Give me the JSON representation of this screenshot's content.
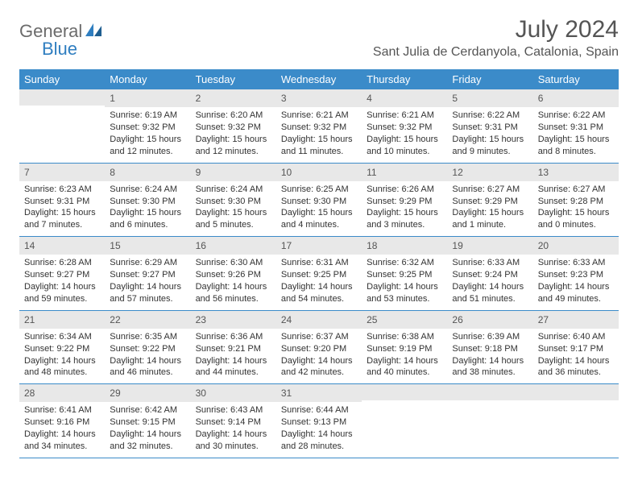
{
  "logo": {
    "part1": "General",
    "part2": "Blue"
  },
  "title": "July 2024",
  "location": "Sant Julia de Cerdanyola, Catalonia, Spain",
  "weekdays": [
    "Sunday",
    "Monday",
    "Tuesday",
    "Wednesday",
    "Thursday",
    "Friday",
    "Saturday"
  ],
  "colors": {
    "header_bg": "#3b8bc9",
    "header_text": "#ffffff",
    "daynum_bg": "#e8e8e8",
    "rule": "#3b8bc9",
    "logo_gray": "#6b6b6b",
    "logo_blue": "#2f7ec0"
  },
  "weeks": [
    [
      {
        "n": "",
        "sunrise": "",
        "sunset": "",
        "daylight": ""
      },
      {
        "n": "1",
        "sunrise": "Sunrise: 6:19 AM",
        "sunset": "Sunset: 9:32 PM",
        "daylight": "Daylight: 15 hours and 12 minutes."
      },
      {
        "n": "2",
        "sunrise": "Sunrise: 6:20 AM",
        "sunset": "Sunset: 9:32 PM",
        "daylight": "Daylight: 15 hours and 12 minutes."
      },
      {
        "n": "3",
        "sunrise": "Sunrise: 6:21 AM",
        "sunset": "Sunset: 9:32 PM",
        "daylight": "Daylight: 15 hours and 11 minutes."
      },
      {
        "n": "4",
        "sunrise": "Sunrise: 6:21 AM",
        "sunset": "Sunset: 9:32 PM",
        "daylight": "Daylight: 15 hours and 10 minutes."
      },
      {
        "n": "5",
        "sunrise": "Sunrise: 6:22 AM",
        "sunset": "Sunset: 9:31 PM",
        "daylight": "Daylight: 15 hours and 9 minutes."
      },
      {
        "n": "6",
        "sunrise": "Sunrise: 6:22 AM",
        "sunset": "Sunset: 9:31 PM",
        "daylight": "Daylight: 15 hours and 8 minutes."
      }
    ],
    [
      {
        "n": "7",
        "sunrise": "Sunrise: 6:23 AM",
        "sunset": "Sunset: 9:31 PM",
        "daylight": "Daylight: 15 hours and 7 minutes."
      },
      {
        "n": "8",
        "sunrise": "Sunrise: 6:24 AM",
        "sunset": "Sunset: 9:30 PM",
        "daylight": "Daylight: 15 hours and 6 minutes."
      },
      {
        "n": "9",
        "sunrise": "Sunrise: 6:24 AM",
        "sunset": "Sunset: 9:30 PM",
        "daylight": "Daylight: 15 hours and 5 minutes."
      },
      {
        "n": "10",
        "sunrise": "Sunrise: 6:25 AM",
        "sunset": "Sunset: 9:30 PM",
        "daylight": "Daylight: 15 hours and 4 minutes."
      },
      {
        "n": "11",
        "sunrise": "Sunrise: 6:26 AM",
        "sunset": "Sunset: 9:29 PM",
        "daylight": "Daylight: 15 hours and 3 minutes."
      },
      {
        "n": "12",
        "sunrise": "Sunrise: 6:27 AM",
        "sunset": "Sunset: 9:29 PM",
        "daylight": "Daylight: 15 hours and 1 minute."
      },
      {
        "n": "13",
        "sunrise": "Sunrise: 6:27 AM",
        "sunset": "Sunset: 9:28 PM",
        "daylight": "Daylight: 15 hours and 0 minutes."
      }
    ],
    [
      {
        "n": "14",
        "sunrise": "Sunrise: 6:28 AM",
        "sunset": "Sunset: 9:27 PM",
        "daylight": "Daylight: 14 hours and 59 minutes."
      },
      {
        "n": "15",
        "sunrise": "Sunrise: 6:29 AM",
        "sunset": "Sunset: 9:27 PM",
        "daylight": "Daylight: 14 hours and 57 minutes."
      },
      {
        "n": "16",
        "sunrise": "Sunrise: 6:30 AM",
        "sunset": "Sunset: 9:26 PM",
        "daylight": "Daylight: 14 hours and 56 minutes."
      },
      {
        "n": "17",
        "sunrise": "Sunrise: 6:31 AM",
        "sunset": "Sunset: 9:25 PM",
        "daylight": "Daylight: 14 hours and 54 minutes."
      },
      {
        "n": "18",
        "sunrise": "Sunrise: 6:32 AM",
        "sunset": "Sunset: 9:25 PM",
        "daylight": "Daylight: 14 hours and 53 minutes."
      },
      {
        "n": "19",
        "sunrise": "Sunrise: 6:33 AM",
        "sunset": "Sunset: 9:24 PM",
        "daylight": "Daylight: 14 hours and 51 minutes."
      },
      {
        "n": "20",
        "sunrise": "Sunrise: 6:33 AM",
        "sunset": "Sunset: 9:23 PM",
        "daylight": "Daylight: 14 hours and 49 minutes."
      }
    ],
    [
      {
        "n": "21",
        "sunrise": "Sunrise: 6:34 AM",
        "sunset": "Sunset: 9:22 PM",
        "daylight": "Daylight: 14 hours and 48 minutes."
      },
      {
        "n": "22",
        "sunrise": "Sunrise: 6:35 AM",
        "sunset": "Sunset: 9:22 PM",
        "daylight": "Daylight: 14 hours and 46 minutes."
      },
      {
        "n": "23",
        "sunrise": "Sunrise: 6:36 AM",
        "sunset": "Sunset: 9:21 PM",
        "daylight": "Daylight: 14 hours and 44 minutes."
      },
      {
        "n": "24",
        "sunrise": "Sunrise: 6:37 AM",
        "sunset": "Sunset: 9:20 PM",
        "daylight": "Daylight: 14 hours and 42 minutes."
      },
      {
        "n": "25",
        "sunrise": "Sunrise: 6:38 AM",
        "sunset": "Sunset: 9:19 PM",
        "daylight": "Daylight: 14 hours and 40 minutes."
      },
      {
        "n": "26",
        "sunrise": "Sunrise: 6:39 AM",
        "sunset": "Sunset: 9:18 PM",
        "daylight": "Daylight: 14 hours and 38 minutes."
      },
      {
        "n": "27",
        "sunrise": "Sunrise: 6:40 AM",
        "sunset": "Sunset: 9:17 PM",
        "daylight": "Daylight: 14 hours and 36 minutes."
      }
    ],
    [
      {
        "n": "28",
        "sunrise": "Sunrise: 6:41 AM",
        "sunset": "Sunset: 9:16 PM",
        "daylight": "Daylight: 14 hours and 34 minutes."
      },
      {
        "n": "29",
        "sunrise": "Sunrise: 6:42 AM",
        "sunset": "Sunset: 9:15 PM",
        "daylight": "Daylight: 14 hours and 32 minutes."
      },
      {
        "n": "30",
        "sunrise": "Sunrise: 6:43 AM",
        "sunset": "Sunset: 9:14 PM",
        "daylight": "Daylight: 14 hours and 30 minutes."
      },
      {
        "n": "31",
        "sunrise": "Sunrise: 6:44 AM",
        "sunset": "Sunset: 9:13 PM",
        "daylight": "Daylight: 14 hours and 28 minutes."
      },
      {
        "n": "",
        "sunrise": "",
        "sunset": "",
        "daylight": ""
      },
      {
        "n": "",
        "sunrise": "",
        "sunset": "",
        "daylight": ""
      },
      {
        "n": "",
        "sunrise": "",
        "sunset": "",
        "daylight": ""
      }
    ]
  ]
}
